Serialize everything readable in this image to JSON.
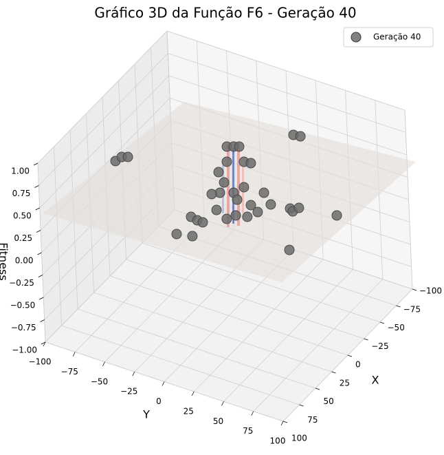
{
  "chart_data": {
    "type": "scatter3d",
    "title": "Gráfico 3D da Função F6 - Geração 40",
    "xlabel": "X",
    "ylabel": "Y",
    "zlabel": "Fitness",
    "legend": "upper right",
    "xlim": [
      -100,
      100
    ],
    "ylim": [
      -100,
      100
    ],
    "zlim": [
      -1,
      1
    ],
    "xticks": [
      {
        "value": -100,
        "label": "−100"
      },
      {
        "value": -75,
        "label": "−75"
      },
      {
        "value": -50,
        "label": "−50"
      },
      {
        "value": -25,
        "label": "−25"
      },
      0,
      25,
      50,
      75,
      100
    ],
    "yticks": [
      {
        "value": -100,
        "label": "−100"
      },
      {
        "value": -75,
        "label": "−75"
      },
      {
        "value": -50,
        "label": "−50"
      },
      {
        "value": -25,
        "label": "−25"
      },
      0,
      25,
      50,
      75,
      100
    ],
    "zticks": [
      {
        "value": -1,
        "label": "−1.00"
      },
      {
        "value": -0.75,
        "label": "−0.75"
      },
      {
        "value": -0.5,
        "label": "−0.50"
      },
      {
        "value": -0.25,
        "label": "−0.25"
      },
      {
        "value": 0,
        "label": "0.00"
      },
      {
        "value": 0.25,
        "label": "0.25"
      },
      {
        "value": 0.5,
        "label": "0.50"
      },
      {
        "value": 0.75,
        "label": "0.75"
      },
      {
        "value": 1,
        "label": "1.00"
      }
    ],
    "grid": true,
    "series": [
      {
        "name": "Geração 40",
        "color": "#6b6b6b",
        "x": [
          -39.5,
          -40.5,
          58.0,
          51.0,
          48.6,
          -0.8,
          -3.4,
          -5.5,
          1.4,
          -5.1,
          -6.1,
          6.3,
          5.9,
          4.0,
          5.5,
          9.2,
          18.9,
          -1.2,
          -2.5,
          8.3,
          16.6,
          21.9,
          31.3,
          34.1,
          41.5,
          35.2,
          5.6,
          7.8,
          1.5,
          -4.3,
          52.7,
          54.3,
          54.5,
          77.8,
          74.2,
          53.1
        ],
        "y": [
          38.9,
          44.2,
          -57.8,
          -56.4,
          -52.5,
          3.9,
          8.2,
          11.7,
          4.6,
          15.5,
          20.7,
          0.0,
          4.1,
          10.8,
          14.4,
          2.1,
          0.6,
          16.8,
          32.9,
          44.5,
          32.3,
          40.9,
          37.3,
          29.1,
          25.5,
          13.5,
          59.3,
          62.7,
          64.5,
          93.2,
          1.6,
          7.7,
          12.4,
          3.1,
          14.4,
          84.5
        ],
        "z": [
          0.9,
          0.9,
          0.9,
          0.9,
          0.9,
          0.9,
          0.9,
          0.9,
          0.75,
          0.75,
          0.75,
          0.65,
          0.55,
          0.45,
          0.4,
          0.45,
          0.5,
          0.5,
          0.5,
          0.5,
          0.5,
          0.5,
          0.5,
          0.5,
          0.5,
          0.5,
          0.5,
          0.5,
          0.5,
          0.5,
          0.5,
          0.5,
          0.5,
          0.5,
          0.5,
          0.5
        ]
      }
    ]
  }
}
